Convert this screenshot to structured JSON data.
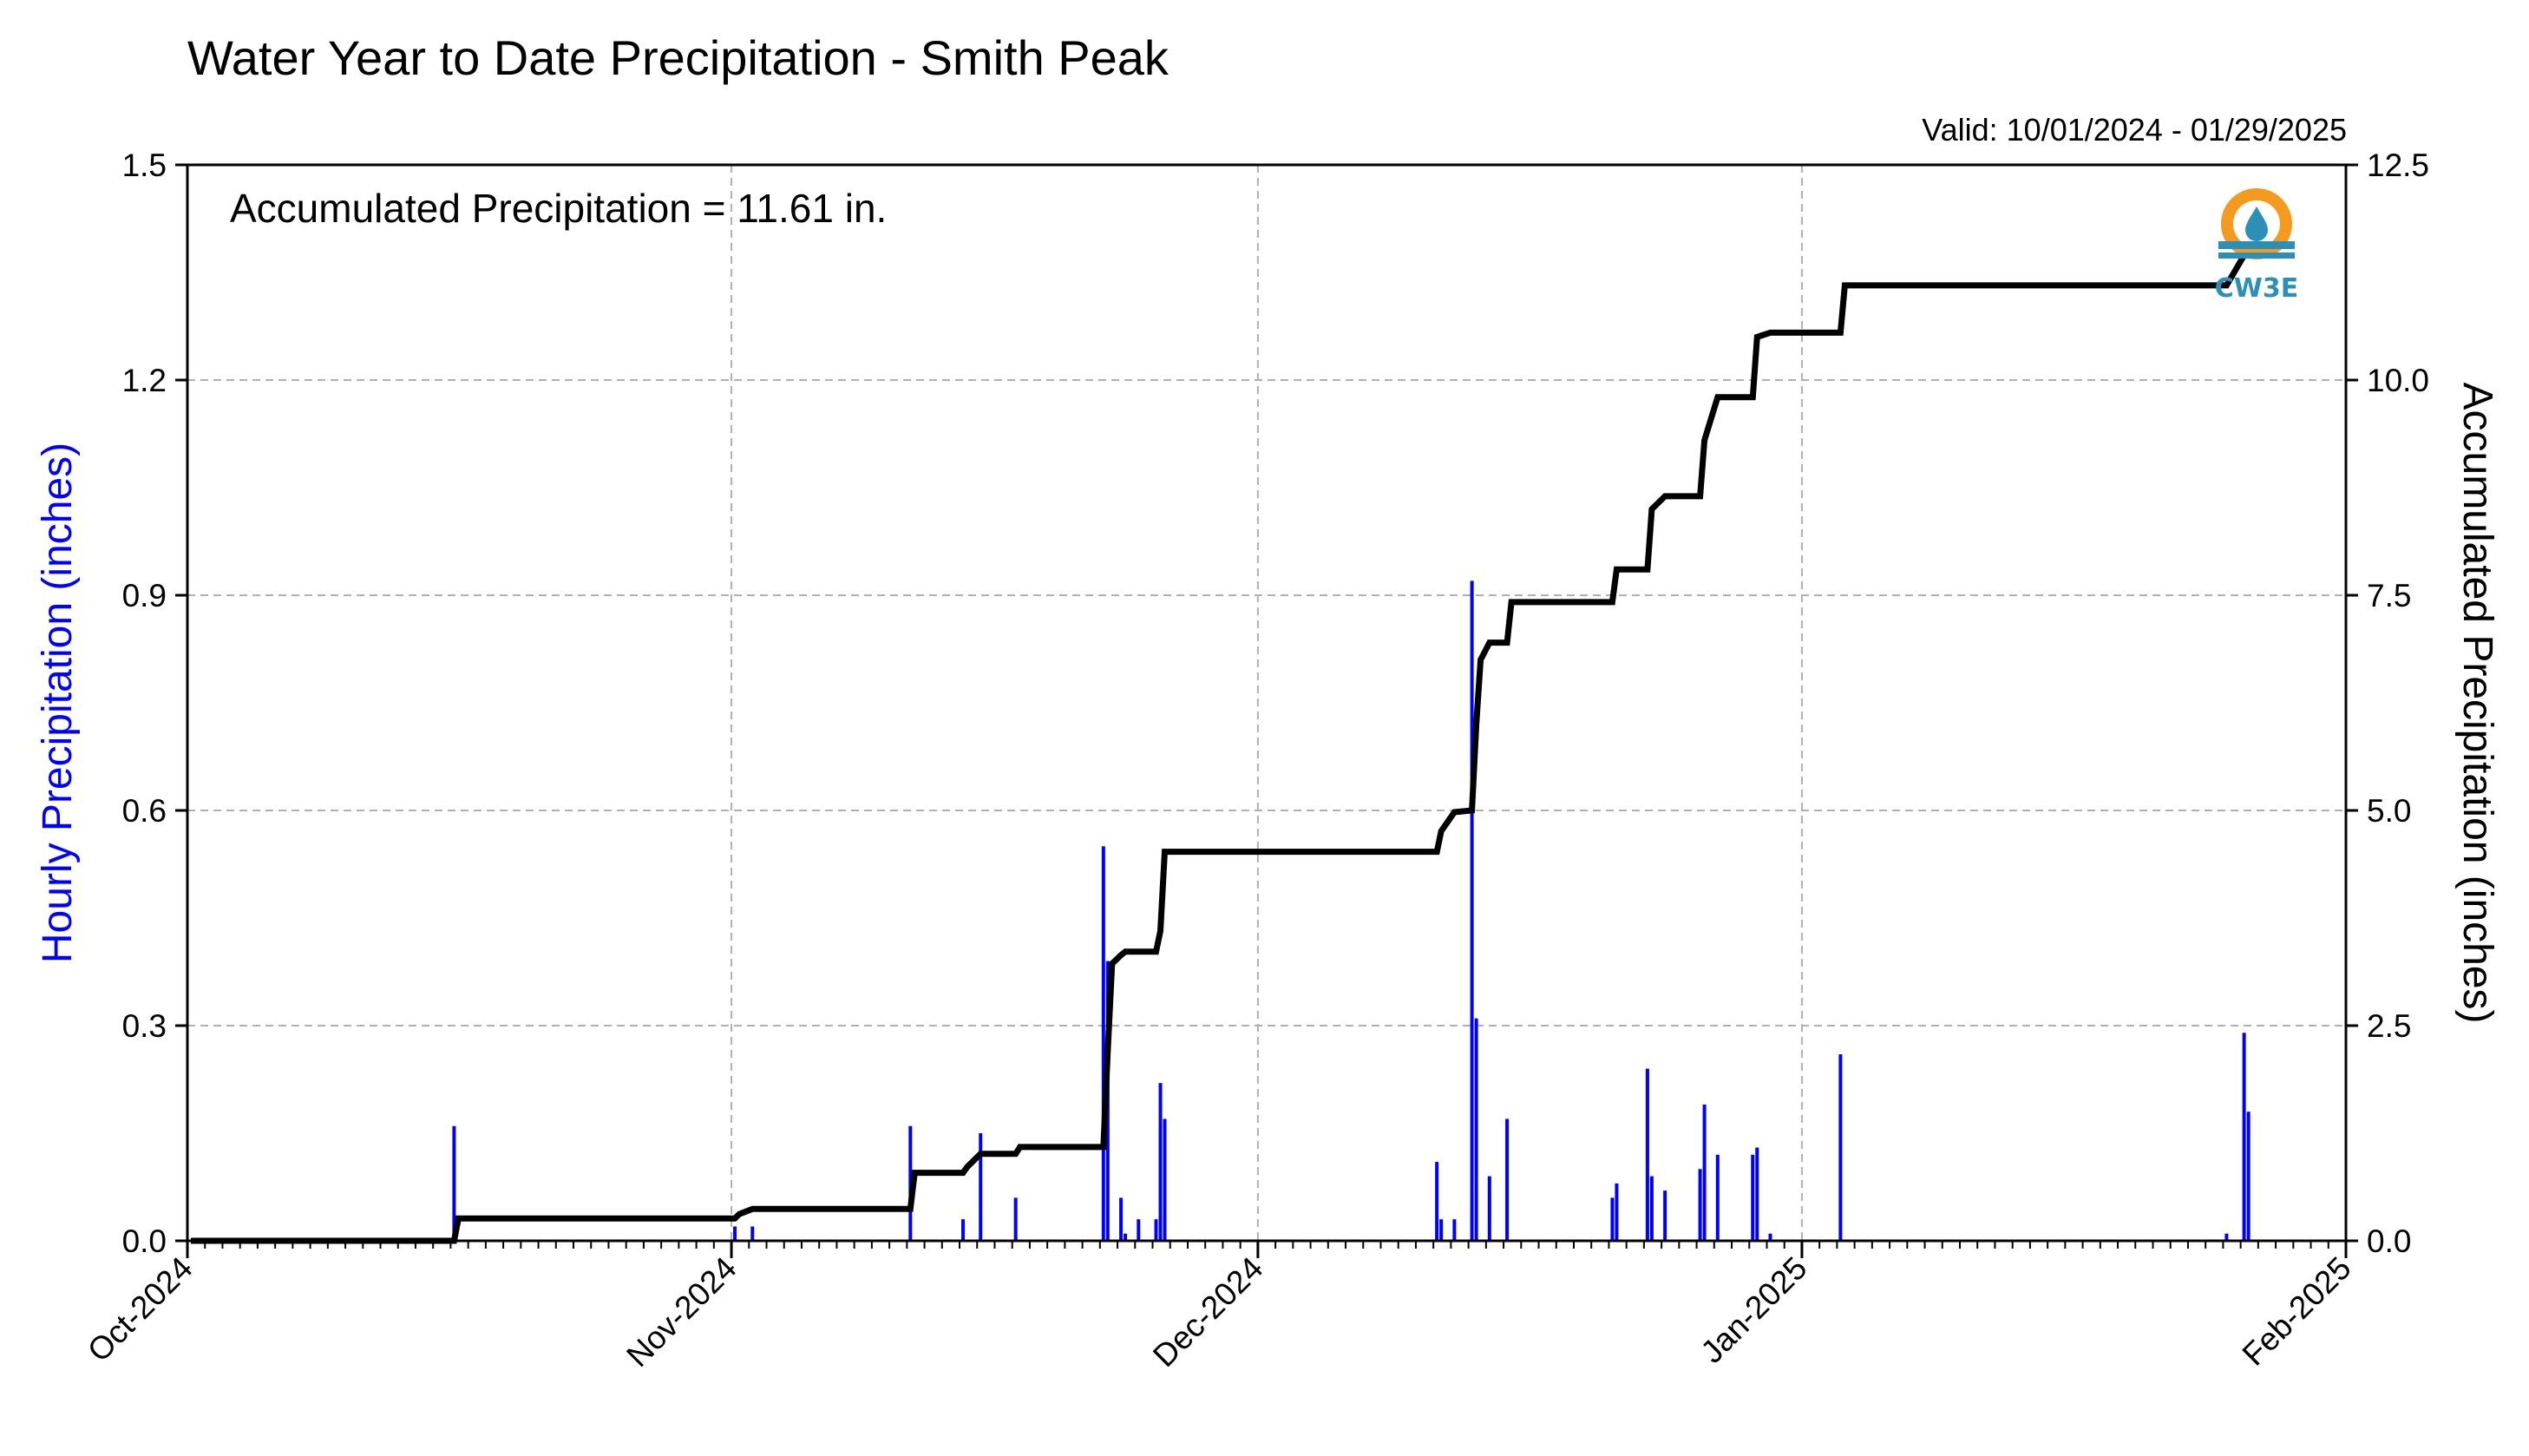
{
  "title": "Water Year to Date Precipitation - Smith Peak",
  "valid_text": "Valid: 10/01/2024 - 01/29/2025",
  "annotation": "Accumulated Precipitation = 11.61 in.",
  "logo": {
    "text": "CW3E",
    "icon": "cw3e-logo-icon",
    "ring_color": "#f39a1f",
    "text_color": "#2b8fb8"
  },
  "colors": {
    "hourly": "#0000ff",
    "accumulated": "#000000",
    "grid": "#b0b0b0"
  },
  "chart_data": {
    "type": "bar+line",
    "title": "Water Year to Date Precipitation - Smith Peak",
    "ylabel_left": "Hourly Precipitation (inches)",
    "ylabel_right": "Accumulated Precipitation (inches)",
    "x_range": [
      "2024-10-01",
      "2025-02-01"
    ],
    "y_left_range": [
      0,
      1.5
    ],
    "y_right_range": [
      0,
      12.5
    ],
    "x_ticks": [
      "Oct-2024",
      "Nov-2024",
      "Dec-2024",
      "Jan-2025",
      "Feb-2025"
    ],
    "y_left_ticks": [
      "0.0",
      "0.3",
      "0.6",
      "0.9",
      "1.2",
      "1.5"
    ],
    "y_right_ticks": [
      "0.0",
      "2.5",
      "5.0",
      "7.5",
      "10.0",
      "12.5"
    ],
    "grid": true,
    "series": [
      {
        "name": "Hourly Precipitation",
        "axis": "left",
        "type": "bar",
        "points": [
          [
            "2024-10-16",
            0.16
          ],
          [
            "2024-11-01",
            0.02
          ],
          [
            "2024-11-02",
            0.02
          ],
          [
            "2024-11-11",
            0.16
          ],
          [
            "2024-11-14",
            0.03
          ],
          [
            "2024-11-15",
            0.15
          ],
          [
            "2024-11-17",
            0.06
          ],
          [
            "2024-11-22",
            0.55
          ],
          [
            "2024-11-22",
            0.39
          ],
          [
            "2024-11-23",
            0.06
          ],
          [
            "2024-11-23",
            0.01
          ],
          [
            "2024-11-24",
            0.03
          ],
          [
            "2024-11-25",
            0.03
          ],
          [
            "2024-11-25",
            0.22
          ],
          [
            "2024-11-25",
            0.17
          ],
          [
            "2024-12-11",
            0.11
          ],
          [
            "2024-12-11",
            0.03
          ],
          [
            "2024-12-12",
            0.03
          ],
          [
            "2024-12-13",
            0.92
          ],
          [
            "2024-12-13",
            0.31
          ],
          [
            "2024-12-14",
            0.09
          ],
          [
            "2024-12-15",
            0.17
          ],
          [
            "2024-12-21",
            0.06
          ],
          [
            "2024-12-21",
            0.08
          ],
          [
            "2024-12-23",
            0.24
          ],
          [
            "2024-12-23",
            0.09
          ],
          [
            "2024-12-24",
            0.07
          ],
          [
            "2024-12-26",
            0.1
          ],
          [
            "2024-12-26",
            0.19
          ],
          [
            "2024-12-27",
            0.12
          ],
          [
            "2024-12-29",
            0.12
          ],
          [
            "2024-12-29",
            0.13
          ],
          [
            "2024-12-30",
            0.01
          ],
          [
            "2025-01-03",
            0.26
          ],
          [
            "2025-01-25",
            0.01
          ],
          [
            "2025-01-26",
            0.29
          ],
          [
            "2025-01-26",
            0.18
          ]
        ]
      },
      {
        "name": "Accumulated Precipitation",
        "axis": "right",
        "type": "line",
        "points": [
          [
            "2024-10-01",
            0.0
          ],
          [
            "2024-10-16",
            0.0
          ],
          [
            "2024-10-16",
            0.26
          ],
          [
            "2024-11-01",
            0.26
          ],
          [
            "2024-11-01",
            0.31
          ],
          [
            "2024-11-02",
            0.37
          ],
          [
            "2024-11-11",
            0.37
          ],
          [
            "2024-11-11",
            0.79
          ],
          [
            "2024-11-14",
            0.79
          ],
          [
            "2024-11-14",
            0.86
          ],
          [
            "2024-11-15",
            1.01
          ],
          [
            "2024-11-17",
            1.01
          ],
          [
            "2024-11-17",
            1.09
          ],
          [
            "2024-11-22",
            1.09
          ],
          [
            "2024-11-22",
            2.2
          ],
          [
            "2024-11-22",
            3.22
          ],
          [
            "2024-11-23",
            3.32
          ],
          [
            "2024-11-23",
            3.36
          ],
          [
            "2024-11-25",
            3.36
          ],
          [
            "2024-11-25",
            3.6
          ],
          [
            "2024-11-25",
            4.52
          ],
          [
            "2024-12-11",
            4.52
          ],
          [
            "2024-12-11",
            4.76
          ],
          [
            "2024-12-12",
            4.98
          ],
          [
            "2024-12-13",
            5.0
          ],
          [
            "2024-12-13",
            6.0
          ],
          [
            "2024-12-13",
            6.75
          ],
          [
            "2024-12-14",
            6.95
          ],
          [
            "2024-12-15",
            6.95
          ],
          [
            "2024-12-15",
            7.42
          ],
          [
            "2024-12-21",
            7.42
          ],
          [
            "2024-12-21",
            7.8
          ],
          [
            "2024-12-23",
            7.8
          ],
          [
            "2024-12-23",
            8.5
          ],
          [
            "2024-12-24",
            8.65
          ],
          [
            "2024-12-26",
            8.65
          ],
          [
            "2024-12-26",
            9.3
          ],
          [
            "2024-12-27",
            9.8
          ],
          [
            "2024-12-29",
            9.8
          ],
          [
            "2024-12-29",
            10.5
          ],
          [
            "2024-12-30",
            10.55
          ],
          [
            "2025-01-03",
            10.55
          ],
          [
            "2025-01-03",
            11.1
          ],
          [
            "2025-01-25",
            11.1
          ],
          [
            "2025-01-26",
            11.45
          ],
          [
            "2025-01-26",
            11.61
          ],
          [
            "2025-01-28",
            11.61
          ]
        ]
      }
    ]
  }
}
